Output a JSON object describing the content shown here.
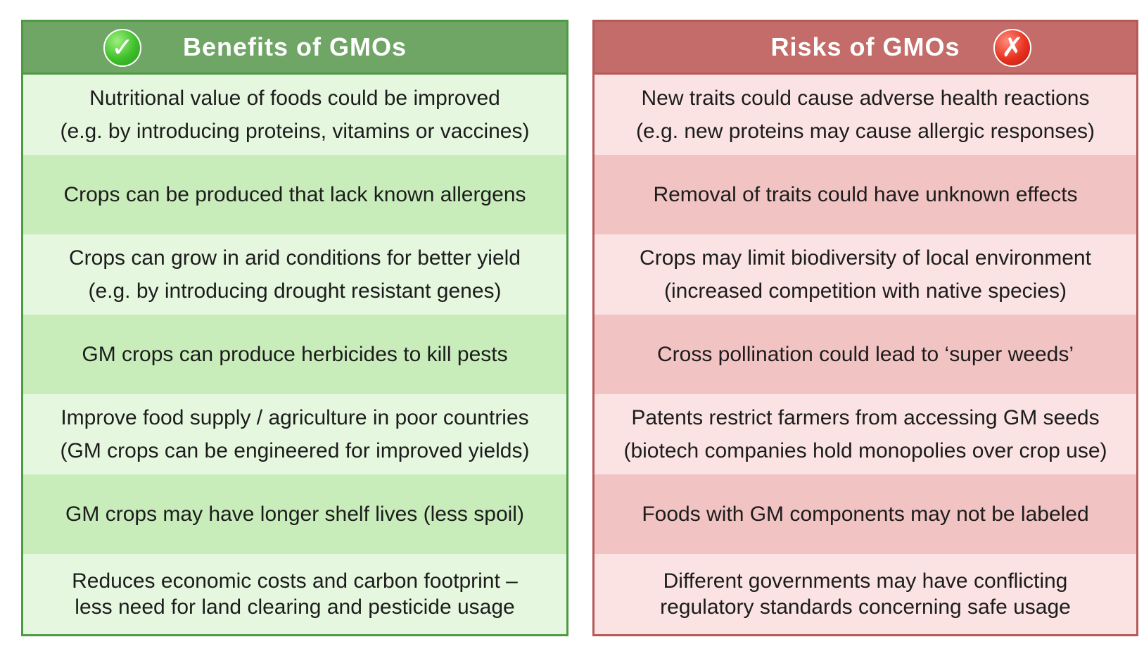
{
  "benefits": {
    "title": "Benefits of GMOs",
    "badge_icon": "check-icon",
    "badge_glyph": "✓",
    "rows": [
      {
        "line1": "Nutritional value of foods could be improved",
        "line2": "(e.g. by introducing proteins, vitamins or vaccines)"
      },
      {
        "line1": "Crops can be produced that lack known allergens",
        "line2": ""
      },
      {
        "line1": "Crops can grow in arid conditions for better yield",
        "line2": "(e.g. by introducing drought resistant genes)"
      },
      {
        "line1": "GM crops can produce herbicides to kill pests",
        "line2": ""
      },
      {
        "line1": "Improve food supply / agriculture in poor countries",
        "line2": "(GM crops can be engineered for improved yields)"
      },
      {
        "line1": "GM crops may have longer shelf lives (less spoil)",
        "line2": ""
      },
      {
        "line1": "Reduces economic costs and carbon footprint –",
        "line2": "less need for land clearing and pesticide usage"
      }
    ]
  },
  "risks": {
    "title": "Risks of GMOs",
    "badge_icon": "cross-icon",
    "badge_glyph": "✗",
    "rows": [
      {
        "line1": "New traits could cause adverse health reactions",
        "line2": "(e.g. new proteins may cause allergic responses)"
      },
      {
        "line1": "Removal of traits could have unknown effects",
        "line2": ""
      },
      {
        "line1": "Crops may limit biodiversity of local environment",
        "line2": "(increased competition with native species)"
      },
      {
        "line1": "Cross pollination could lead to ‘super weeds’",
        "line2": ""
      },
      {
        "line1": "Patents restrict farmers from accessing GM seeds",
        "line2": "(biotech companies hold monopolies over crop use)"
      },
      {
        "line1": "Foods with GM components may not be labeled",
        "line2": ""
      },
      {
        "line1": "Different governments may have conflicting",
        "line2": "regulatory standards concerning safe usage"
      }
    ]
  }
}
